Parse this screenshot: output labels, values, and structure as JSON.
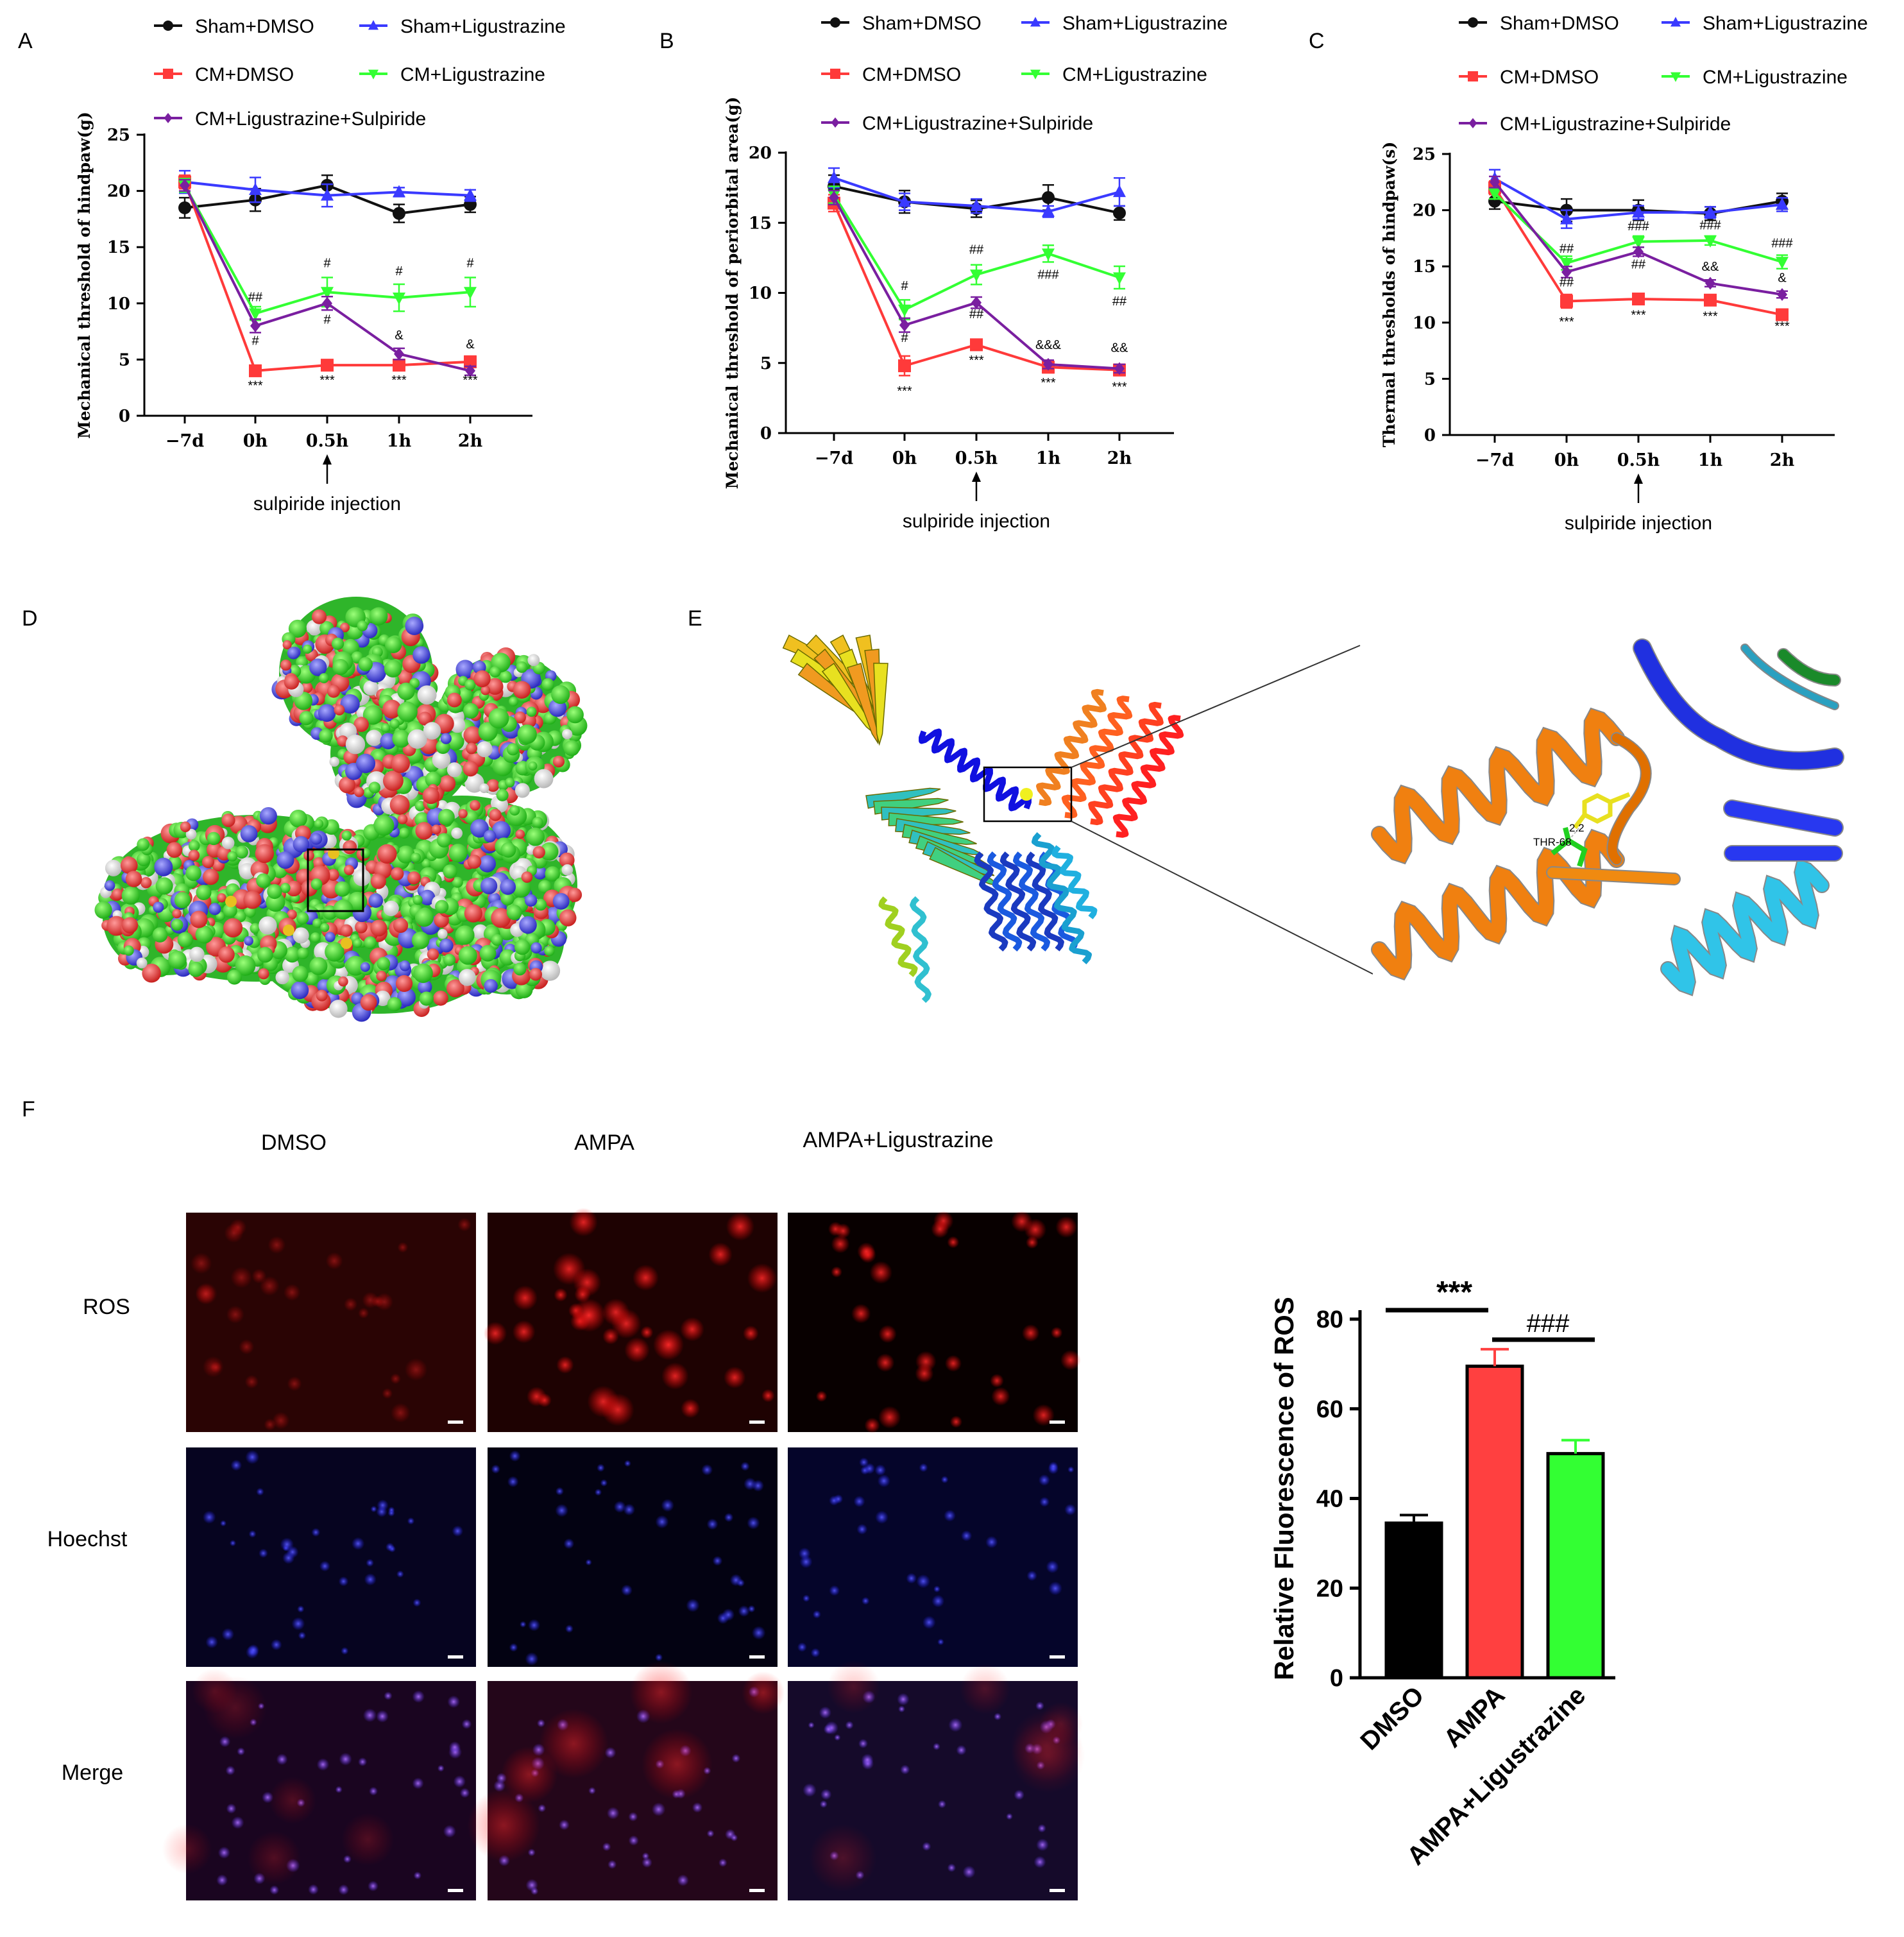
{
  "panel_labels": {
    "A": "A",
    "B": "B",
    "C": "C",
    "D": "D",
    "E": "E",
    "F": "F"
  },
  "colors": {
    "Sham+DMSO": "#111111",
    "Sham+Ligustrazine": "#3a3aff",
    "CM+DMSO": "#ff3a3a",
    "CM+Ligustrazine": "#33ff33",
    "CM+Ligustrazine+Sulpiride": "#7a1fa0"
  },
  "panel_e": {
    "residue_label": "THR-68",
    "distance_label": "2.2"
  },
  "panel_f": {
    "columns": [
      "DMSO",
      "AMPA",
      "AMPA+Ligustrazine"
    ],
    "rows": [
      "ROS",
      "Hoechst",
      "Merge"
    ]
  },
  "chart_data": [
    {
      "id": "A",
      "type": "line",
      "ylabel": "Mechanical threshold of hindpaw(g)",
      "categories": [
        "−7d",
        "0h",
        "0.5h",
        "1h",
        "2h"
      ],
      "ylim": [
        0,
        25
      ],
      "yticks": [
        0,
        5,
        10,
        15,
        20,
        25
      ],
      "annotation": "sulpiride injection",
      "series": [
        {
          "name": "Sham+DMSO",
          "marker": "circle",
          "values": [
            18.5,
            19.2,
            20.5,
            18.0,
            18.8
          ],
          "err": [
            0.9,
            1.0,
            0.9,
            0.8,
            0.7
          ]
        },
        {
          "name": "Sham+Ligustrazine",
          "marker": "triangle",
          "values": [
            20.8,
            20.1,
            19.6,
            19.9,
            19.6
          ],
          "err": [
            1.0,
            1.1,
            1.0,
            0.4,
            0.5
          ]
        },
        {
          "name": "CM+DMSO",
          "marker": "square",
          "values": [
            20.8,
            4.0,
            4.5,
            4.5,
            4.8
          ],
          "err": [
            0.6,
            0.4,
            0.3,
            0.4,
            0.5
          ]
        },
        {
          "name": "CM+Ligustrazine",
          "marker": "tri-down",
          "values": [
            20.5,
            9.1,
            11.0,
            10.5,
            11.0
          ],
          "err": [
            0.6,
            0.6,
            1.3,
            1.2,
            1.3
          ]
        },
        {
          "name": "CM+Ligustrazine+Sulpiride",
          "marker": "diamond",
          "values": [
            20.5,
            8.0,
            10.0,
            5.5,
            4.0
          ],
          "err": [
            0.5,
            0.6,
            0.6,
            0.5,
            0.4
          ]
        }
      ],
      "annotations": [
        {
          "x": 1,
          "y": 10.2,
          "text": "##"
        },
        {
          "x": 1,
          "y": 6.3,
          "text": "#"
        },
        {
          "x": 1,
          "y": 2.3,
          "text": "***"
        },
        {
          "x": 2,
          "y": 13.2,
          "text": "#"
        },
        {
          "x": 2,
          "y": 8.2,
          "text": "#"
        },
        {
          "x": 2,
          "y": 2.8,
          "text": "***"
        },
        {
          "x": 3,
          "y": 12.5,
          "text": "#"
        },
        {
          "x": 3,
          "y": 6.8,
          "text": "&"
        },
        {
          "x": 3,
          "y": 2.8,
          "text": "***"
        },
        {
          "x": 4,
          "y": 13.2,
          "text": "#"
        },
        {
          "x": 4,
          "y": 6.0,
          "text": "&"
        },
        {
          "x": 4,
          "y": 2.8,
          "text": "***"
        }
      ]
    },
    {
      "id": "B",
      "type": "line",
      "ylabel": "Mechanical threshold of periorbital area(g)",
      "categories": [
        "−7d",
        "0h",
        "0.5h",
        "1h",
        "2h"
      ],
      "ylim": [
        0,
        20
      ],
      "yticks": [
        0,
        5,
        10,
        15,
        20
      ],
      "annotation": "sulpiride injection",
      "series": [
        {
          "name": "Sham+DMSO",
          "marker": "circle",
          "values": [
            17.6,
            16.5,
            16.0,
            16.8,
            15.7
          ],
          "err": [
            0.8,
            0.8,
            0.6,
            0.9,
            0.5
          ]
        },
        {
          "name": "Sham+Ligustrazine",
          "marker": "triangle",
          "values": [
            18.2,
            16.5,
            16.2,
            15.8,
            17.2
          ],
          "err": [
            0.7,
            0.6,
            0.5,
            0.4,
            1.0
          ]
        },
        {
          "name": "CM+DMSO",
          "marker": "square",
          "values": [
            16.4,
            4.8,
            6.3,
            4.7,
            4.5
          ],
          "err": [
            0.6,
            0.7,
            0.3,
            0.4,
            0.4
          ]
        },
        {
          "name": "CM+Ligustrazine",
          "marker": "tri-down",
          "values": [
            17.0,
            8.8,
            11.3,
            12.8,
            11.1
          ],
          "err": [
            0.6,
            0.7,
            0.7,
            0.6,
            0.8
          ]
        },
        {
          "name": "CM+Ligustrazine+Sulpiride",
          "marker": "diamond",
          "values": [
            16.8,
            7.7,
            9.3,
            4.9,
            4.6
          ],
          "err": [
            0.5,
            0.5,
            0.4,
            0.3,
            0.3
          ]
        }
      ],
      "annotations": [
        {
          "x": 1,
          "y": 10.2,
          "text": "#"
        },
        {
          "x": 1,
          "y": 6.5,
          "text": "#"
        },
        {
          "x": 1,
          "y": 2.7,
          "text": "***"
        },
        {
          "x": 2,
          "y": 12.8,
          "text": "##"
        },
        {
          "x": 2,
          "y": 8.2,
          "text": "##"
        },
        {
          "x": 2,
          "y": 4.9,
          "text": "***"
        },
        {
          "x": 3,
          "y": 11.0,
          "text": "###"
        },
        {
          "x": 3,
          "y": 6.0,
          "text": "&&&"
        },
        {
          "x": 3,
          "y": 3.3,
          "text": "***"
        },
        {
          "x": 4,
          "y": 9.1,
          "text": "##"
        },
        {
          "x": 4,
          "y": 5.8,
          "text": "&&"
        },
        {
          "x": 4,
          "y": 3.0,
          "text": "***"
        }
      ]
    },
    {
      "id": "C",
      "type": "line",
      "ylabel": "Thermal thresholds of hindpaw(s)",
      "categories": [
        "−7d",
        "0h",
        "0.5h",
        "1h",
        "2h"
      ],
      "ylim": [
        0,
        25
      ],
      "yticks": [
        0,
        5,
        10,
        15,
        20,
        25
      ],
      "annotation": "sulpiride injection",
      "series": [
        {
          "name": "Sham+DMSO",
          "marker": "circle",
          "values": [
            20.8,
            20.0,
            20.0,
            19.7,
            20.8
          ],
          "err": [
            0.7,
            1.0,
            0.9,
            0.6,
            0.7
          ]
        },
        {
          "name": "Sham+Ligustrazine",
          "marker": "triangle",
          "values": [
            22.8,
            19.2,
            19.8,
            19.8,
            20.5
          ],
          "err": [
            0.8,
            0.8,
            0.6,
            0.5,
            0.6
          ]
        },
        {
          "name": "CM+DMSO",
          "marker": "square",
          "values": [
            22.0,
            11.9,
            12.1,
            12.0,
            10.7
          ],
          "err": [
            0.6,
            0.6,
            0.4,
            0.4,
            0.4
          ]
        },
        {
          "name": "CM+Ligustrazine",
          "marker": "tri-down",
          "values": [
            21.5,
            15.3,
            17.2,
            17.3,
            15.4
          ],
          "err": [
            0.5,
            0.6,
            0.5,
            0.4,
            0.6
          ]
        },
        {
          "name": "CM+Ligustrazine+Sulpiride",
          "marker": "diamond",
          "values": [
            22.5,
            14.5,
            16.3,
            13.5,
            12.5
          ],
          "err": [
            0.5,
            0.5,
            0.4,
            0.3,
            0.3
          ]
        }
      ],
      "annotations": [
        {
          "x": 1,
          "y": 16.2,
          "text": "##"
        },
        {
          "x": 1,
          "y": 13.2,
          "text": "##"
        },
        {
          "x": 1,
          "y": 9.7,
          "text": "***"
        },
        {
          "x": 2,
          "y": 18.2,
          "text": "###"
        },
        {
          "x": 2,
          "y": 14.8,
          "text": "##"
        },
        {
          "x": 2,
          "y": 10.3,
          "text": "***"
        },
        {
          "x": 3,
          "y": 18.3,
          "text": "###"
        },
        {
          "x": 3,
          "y": 14.6,
          "text": "&&"
        },
        {
          "x": 3,
          "y": 10.2,
          "text": "***"
        },
        {
          "x": 4,
          "y": 16.7,
          "text": "###"
        },
        {
          "x": 4,
          "y": 13.6,
          "text": "&"
        },
        {
          "x": 4,
          "y": 9.3,
          "text": "***"
        }
      ]
    },
    {
      "id": "F",
      "type": "bar",
      "ylabel": "Relative Fluorescence of ROS",
      "categories": [
        "DMSO",
        "AMPA",
        "AMPA+Ligustrazine"
      ],
      "values": [
        34.5,
        69.5,
        50.0
      ],
      "err": [
        1.8,
        3.8,
        3.0
      ],
      "colors": [
        "#000000",
        "#ff4040",
        "#33ff33"
      ],
      "ylim": [
        0,
        80
      ],
      "yticks": [
        0,
        20,
        40,
        60,
        80
      ],
      "significance": [
        {
          "from": 0,
          "to": 1,
          "text": "***"
        },
        {
          "from": 1,
          "to": 2,
          "text": "###"
        }
      ]
    }
  ]
}
